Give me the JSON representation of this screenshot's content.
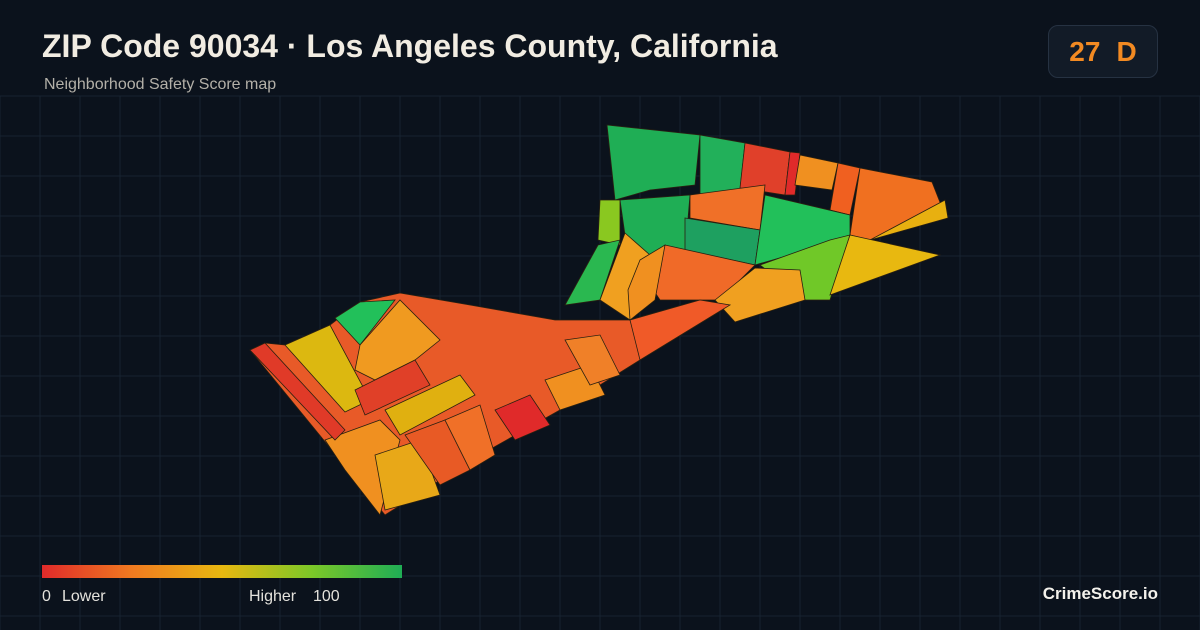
{
  "header": {
    "title": "ZIP Code 90034 · Los Angeles County, California",
    "subtitle": "Neighborhood Safety Score map"
  },
  "score": {
    "value": "27",
    "grade": "D"
  },
  "legend": {
    "min": "0",
    "min_label": "Lower",
    "max_label": "Higher",
    "max": "100"
  },
  "brand": "CrimeScore.io"
}
